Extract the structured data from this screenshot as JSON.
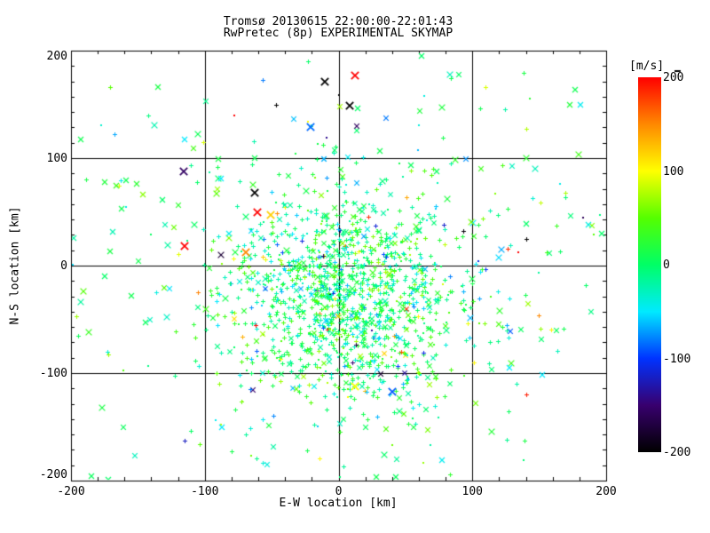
{
  "chart_data": {
    "type": "scatter",
    "title": "Tromsø 20130615 22:00:00-22:01:43",
    "subtitle": "RwPretec (8p) EXPERIMENTAL SKYMAP",
    "xlabel": "E-W location [km]",
    "ylabel": "N-S location [km]",
    "xlim": [
      -200,
      200
    ],
    "ylim": [
      -200,
      200
    ],
    "x_ticks": [
      -200,
      -100,
      0,
      100,
      200
    ],
    "y_ticks": [
      -200,
      -100,
      0,
      100,
      200
    ],
    "x_minor_step_km": 20,
    "y_minor_divisions_per_major": 7,
    "grid_values": [
      -100,
      0,
      100
    ],
    "grid_on": true,
    "axis_color": "#000000",
    "background_color": "#ffffff",
    "colorbar": {
      "unit": "[m/s]",
      "ticks": [
        200,
        100,
        0,
        -100,
        -200
      ],
      "range": [
        -200,
        200
      ],
      "position": "right",
      "stops": [
        {
          "v": 200,
          "c": "#ff0000"
        },
        {
          "v": 150,
          "c": "#ff8800"
        },
        {
          "v": 100,
          "c": "#ffff00"
        },
        {
          "v": 50,
          "c": "#55ff00"
        },
        {
          "v": 0,
          "c": "#00ff66"
        },
        {
          "v": -50,
          "c": "#00eaff"
        },
        {
          "v": -100,
          "c": "#0033ff"
        },
        {
          "v": -150,
          "c": "#38006e"
        },
        {
          "v": -200,
          "c": "#000000"
        }
      ]
    },
    "description": "Dense cloud of meteor/radar echoes centered near (8,-30) km, mostly velocities near 0 m/s (green/cyan), sparse large X echoes in periphery.",
    "generation": {
      "seed": 20130615,
      "velocity_model": {
        "mean": 2,
        "sd": 36,
        "outlier_frac": 0.055,
        "outlier_range": [
          -200,
          200
        ]
      },
      "components": [
        {
          "n": 1000,
          "cx": 8,
          "cy": -30,
          "sx": 40,
          "sy": 46,
          "markers": {
            "plus": 0.8,
            "dot": 0.12,
            "x": 0.08
          },
          "xr": 2.6
        },
        {
          "n": 470,
          "cx": 4,
          "cy": -25,
          "sx": 76,
          "sy": 80,
          "markers": {
            "plus": 0.55,
            "dot": 0.15,
            "x": 0.3
          },
          "xr": 2.8
        },
        {
          "n": 90,
          "cx": 0,
          "cy": 30,
          "sx": 110,
          "sy": 95,
          "markers": {
            "plus": 0.15,
            "dot": 0.1,
            "x": 0.75
          },
          "xr": 3.4
        }
      ]
    },
    "notable_points_format": "[x_km, y_km, velocity_ms, marker(+ x X .)]",
    "notable_points": [
      [
        -135,
        166,
        15,
        "x"
      ],
      [
        -115,
        117,
        -50,
        "x"
      ],
      [
        -193,
        117,
        10,
        "x"
      ],
      [
        -189,
        80,
        15,
        "+"
      ],
      [
        -175,
        78,
        20,
        "x"
      ],
      [
        -166,
        74,
        35,
        "x"
      ],
      [
        -159,
        79,
        10,
        "x"
      ],
      [
        -151,
        76,
        25,
        "x"
      ],
      [
        -146,
        66,
        65,
        "x"
      ],
      [
        -132,
        61,
        0,
        "x"
      ],
      [
        -162,
        53,
        10,
        "x"
      ],
      [
        -169,
        31,
        -25,
        "x"
      ],
      [
        -171,
        13,
        15,
        "x"
      ],
      [
        -198,
        26,
        -20,
        "x"
      ],
      [
        -175,
        -10,
        0,
        "x"
      ],
      [
        -155,
        -28,
        10,
        "x"
      ],
      [
        -144,
        -53,
        5,
        "x"
      ],
      [
        -116,
        88,
        -155,
        "X"
      ],
      [
        -115,
        18,
        200,
        "X"
      ],
      [
        -88,
        81,
        -50,
        "x"
      ],
      [
        -90,
        99,
        15,
        "x"
      ],
      [
        -63,
        100,
        10,
        "x"
      ],
      [
        -87,
        -150,
        -50,
        "x"
      ],
      [
        -185,
        -196,
        5,
        "x"
      ],
      [
        -172,
        -199,
        0,
        "x"
      ],
      [
        -23,
        190,
        0,
        "+"
      ],
      [
        -10,
        171,
        -200,
        "X"
      ],
      [
        12,
        177,
        200,
        "X"
      ],
      [
        -47,
        150,
        -200,
        "+"
      ],
      [
        -78,
        140,
        200,
        "."
      ],
      [
        -21,
        129,
        -85,
        "X"
      ],
      [
        -23,
        134,
        100,
        "."
      ],
      [
        8,
        149,
        -200,
        "X"
      ],
      [
        14,
        146,
        0,
        "x"
      ],
      [
        31,
        107,
        10,
        "x"
      ],
      [
        54,
        93,
        5,
        "x"
      ],
      [
        62,
        195,
        0,
        "x"
      ],
      [
        64,
        158,
        -40,
        "."
      ],
      [
        0,
        159,
        -200,
        "."
      ],
      [
        -63,
        68,
        -200,
        "X"
      ],
      [
        -61,
        50,
        200,
        "X"
      ],
      [
        -51,
        47,
        120,
        "X"
      ],
      [
        -82,
        30,
        -45,
        "x"
      ],
      [
        -69,
        12,
        150,
        "X"
      ],
      [
        84,
        174,
        10,
        "+"
      ],
      [
        138,
        179,
        15,
        "+"
      ],
      [
        177,
        164,
        10,
        "x"
      ],
      [
        173,
        150,
        20,
        "x"
      ],
      [
        181,
        150,
        -45,
        "x"
      ],
      [
        106,
        146,
        10,
        "+"
      ],
      [
        143,
        155,
        25,
        "."
      ],
      [
        73,
        88,
        5,
        "x"
      ],
      [
        140,
        39,
        0,
        "x"
      ],
      [
        187,
        38,
        -40,
        "x"
      ],
      [
        183,
        45,
        -160,
        "."
      ],
      [
        197,
        30,
        0,
        "x"
      ],
      [
        140,
        25,
        -200,
        "+"
      ],
      [
        134,
        12,
        200,
        "."
      ],
      [
        128,
        -95,
        -50,
        "x"
      ],
      [
        168,
        -59,
        10,
        "+"
      ],
      [
        185,
        -18,
        0,
        "+"
      ],
      [
        12,
        -112,
        100,
        "X"
      ],
      [
        40,
        -117,
        -90,
        "X"
      ],
      [
        77,
        -181,
        -45,
        "x"
      ],
      [
        28,
        -197,
        10,
        "x"
      ],
      [
        43,
        -197,
        5,
        "x"
      ],
      [
        140,
        -120,
        190,
        "+"
      ],
      [
        152,
        -102,
        -50,
        "x"
      ],
      [
        139,
        -163,
        15,
        "+"
      ],
      [
        138,
        -181,
        -5,
        "."
      ]
    ]
  }
}
